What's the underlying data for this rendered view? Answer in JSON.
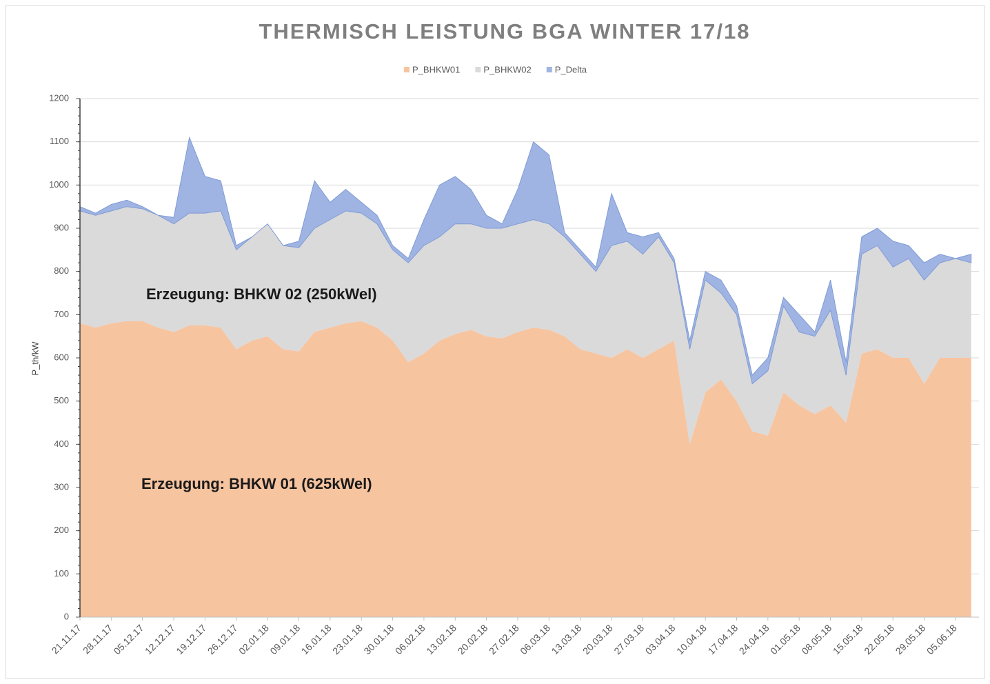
{
  "chart_data": {
    "type": "stacked_area",
    "title": "THERMISCH LEISTUNG BGA WINTER 17/18",
    "y_label": "P_th/kW",
    "annotations": [
      "Erzeugung: BHKW 02 (250kWel)",
      "Erzeugung: BHKW 01 (625kWel)"
    ],
    "legend": "top",
    "grid": true,
    "ylim": [
      0,
      1200
    ],
    "yticks": [
      0,
      100,
      200,
      300,
      400,
      500,
      600,
      700,
      800,
      900,
      1000,
      1100,
      1200
    ],
    "categories": [
      "21.11.17",
      null,
      "28.11.17",
      null,
      "05.12.17",
      null,
      "12.12.17",
      null,
      "19.12.17",
      null,
      "26.12.17",
      null,
      "02.01.18",
      null,
      "09.01.18",
      null,
      "16.01.18",
      null,
      "23.01.18",
      null,
      "30.01.18",
      null,
      "06.02.18",
      null,
      "13.02.18",
      null,
      "20.02.18",
      null,
      "27.02.18",
      null,
      "06.03.18",
      null,
      "13.03.18",
      null,
      "20.03.18",
      null,
      "27.03.18",
      null,
      "03.04.18",
      null,
      "10.04.18",
      null,
      "17.04.18",
      null,
      "24.04.18",
      null,
      "01.05.18",
      null,
      "08.05.18",
      null,
      "15.05.18",
      null,
      "22.05.18",
      null,
      "29.05.18",
      null,
      "05.06.18",
      null
    ],
    "series": [
      {
        "name": "P_BHKW01",
        "color": "#f7c4a0",
        "values": [
          680,
          670,
          680,
          685,
          685,
          670,
          660,
          675,
          675,
          670,
          620,
          640,
          650,
          620,
          615,
          660,
          670,
          680,
          685,
          670,
          640,
          590,
          610,
          640,
          655,
          665,
          650,
          645,
          660,
          670,
          665,
          650,
          620,
          610,
          600,
          620,
          600,
          620,
          640,
          400,
          520,
          550,
          500,
          430,
          420,
          520,
          490,
          470,
          490,
          450,
          610,
          620,
          600,
          600,
          540,
          600,
          600,
          600
        ]
      },
      {
        "name": "P_BHKW02",
        "color": "#dadada",
        "values": [
          260,
          260,
          260,
          265,
          260,
          260,
          250,
          260,
          260,
          270,
          230,
          240,
          260,
          240,
          240,
          240,
          250,
          260,
          250,
          240,
          210,
          230,
          250,
          240,
          255,
          245,
          250,
          255,
          250,
          250,
          245,
          230,
          220,
          190,
          260,
          250,
          240,
          260,
          180,
          220,
          260,
          200,
          200,
          110,
          150,
          200,
          170,
          180,
          220,
          110,
          230,
          240,
          210,
          230,
          240,
          220,
          230,
          220
        ]
      },
      {
        "name": "P_Delta",
        "color": "#9fb4e2",
        "values": [
          10,
          5,
          15,
          15,
          5,
          0,
          15,
          175,
          85,
          70,
          10,
          0,
          0,
          0,
          15,
          110,
          40,
          50,
          25,
          20,
          10,
          10,
          60,
          120,
          110,
          80,
          30,
          10,
          80,
          180,
          160,
          10,
          10,
          10,
          120,
          20,
          40,
          10,
          10,
          20,
          20,
          30,
          20,
          20,
          30,
          20,
          40,
          10,
          70,
          30,
          40,
          40,
          60,
          30,
          40,
          20,
          0,
          20
        ]
      }
    ]
  }
}
